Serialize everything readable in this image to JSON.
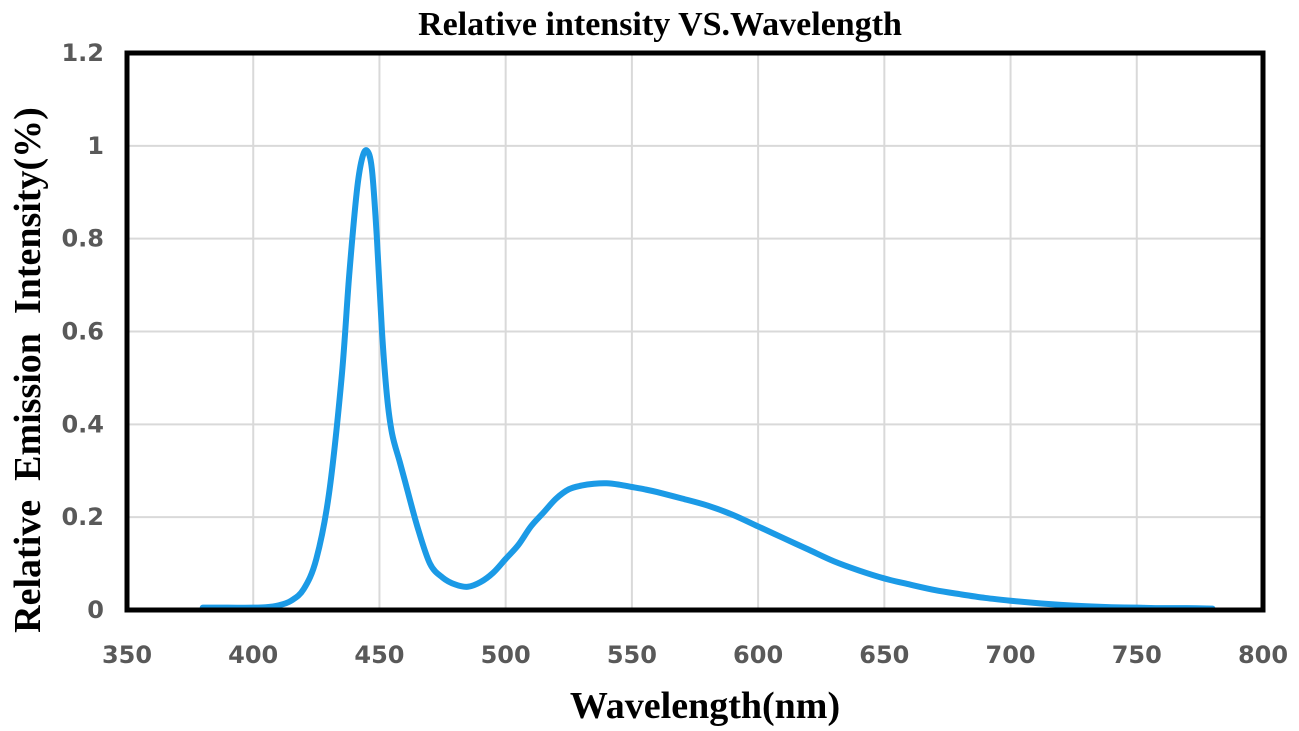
{
  "chart_data": {
    "type": "line",
    "title": "Relative intensity VS.Wavelength",
    "xlabel": "Wavelength(nm)",
    "ylabel": "Relative  Emission  Intensity(%)",
    "xlim": [
      350,
      800
    ],
    "ylim": [
      0,
      1.2
    ],
    "xticks": [
      350,
      400,
      450,
      500,
      550,
      600,
      650,
      700,
      750,
      800
    ],
    "yticks": [
      0,
      0.2,
      0.4,
      0.6,
      0.8,
      1.0,
      1.2
    ],
    "ytick_labels": [
      "0",
      "0.2",
      "0.4",
      "0.6",
      "0.8",
      "1",
      "1.2"
    ],
    "grid": true,
    "series": [
      {
        "color": "#1b9ae6",
        "x": [
          380,
          390,
          400,
          405,
          410,
          415,
          420,
          425,
          430,
          435,
          438,
          441,
          443,
          445,
          447,
          449,
          451,
          453,
          455,
          458,
          460,
          465,
          470,
          475,
          480,
          485,
          490,
          495,
          500,
          505,
          510,
          515,
          520,
          525,
          530,
          535,
          540,
          545,
          550,
          555,
          560,
          570,
          580,
          590,
          600,
          610,
          620,
          630,
          640,
          650,
          660,
          670,
          680,
          690,
          700,
          710,
          720,
          730,
          740,
          750,
          760,
          770,
          780
        ],
        "y": [
          0.005,
          0.005,
          0.005,
          0.006,
          0.01,
          0.02,
          0.045,
          0.11,
          0.25,
          0.5,
          0.72,
          0.9,
          0.97,
          0.99,
          0.95,
          0.8,
          0.6,
          0.46,
          0.38,
          0.32,
          0.28,
          0.18,
          0.1,
          0.07,
          0.055,
          0.05,
          0.06,
          0.08,
          0.11,
          0.14,
          0.18,
          0.21,
          0.24,
          0.26,
          0.268,
          0.272,
          0.273,
          0.27,
          0.265,
          0.26,
          0.254,
          0.24,
          0.225,
          0.205,
          0.18,
          0.155,
          0.13,
          0.105,
          0.085,
          0.068,
          0.055,
          0.043,
          0.034,
          0.026,
          0.02,
          0.015,
          0.011,
          0.008,
          0.006,
          0.005,
          0.004,
          0.004,
          0.003
        ]
      }
    ]
  }
}
